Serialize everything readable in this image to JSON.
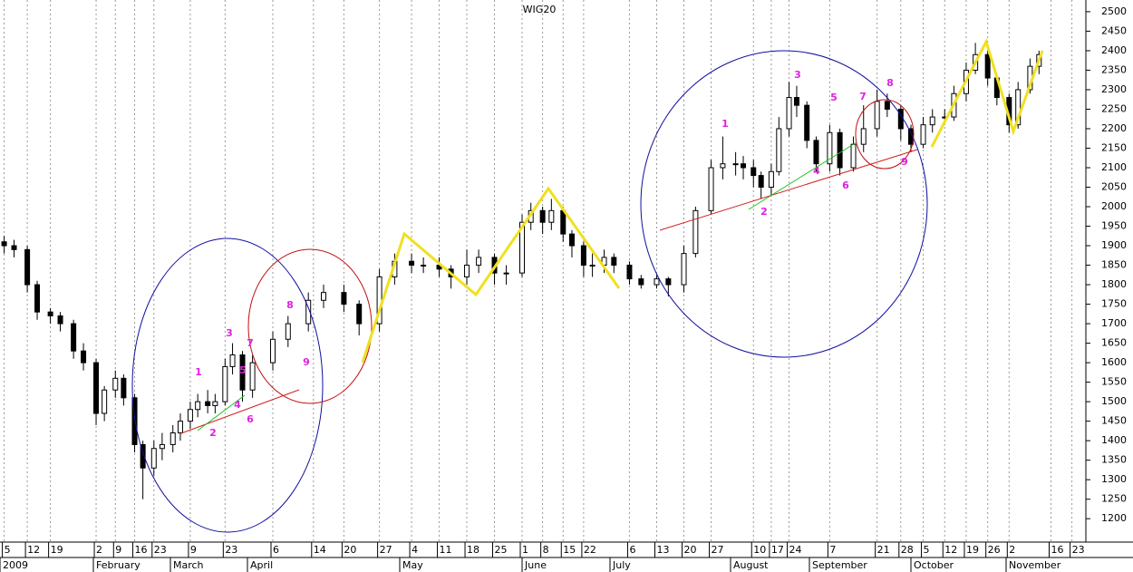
{
  "chart_data": {
    "type": "candlestick",
    "title": "WIG20",
    "x": [
      "2009-01-05",
      "2009-01-08",
      "2009-01-12",
      "2009-01-15",
      "2009-01-19",
      "2009-01-22",
      "2009-01-26",
      "2009-01-29",
      "2009-02-02",
      "2009-02-05",
      "2009-02-09",
      "2009-02-12",
      "2009-02-16",
      "2009-02-19",
      "2009-02-23",
      "2009-02-26",
      "2009-03-02",
      "2009-03-05",
      "2009-03-09",
      "2009-03-12",
      "2009-03-16",
      "2009-03-19",
      "2009-03-23",
      "2009-03-26",
      "2009-03-30",
      "2009-04-02",
      "2009-04-06",
      "2009-04-09",
      "2009-04-13",
      "2009-04-16",
      "2009-04-20",
      "2009-04-23",
      "2009-04-27",
      "2009-04-30",
      "2009-05-04",
      "2009-05-07",
      "2009-05-11",
      "2009-05-14",
      "2009-05-18",
      "2009-05-21",
      "2009-05-25",
      "2009-05-28",
      "2009-06-01",
      "2009-06-04",
      "2009-06-08",
      "2009-06-11",
      "2009-06-15",
      "2009-06-18",
      "2009-06-22",
      "2009-06-25",
      "2009-06-29",
      "2009-07-02",
      "2009-07-06",
      "2009-07-09",
      "2009-07-13",
      "2009-07-16",
      "2009-07-20",
      "2009-07-23",
      "2009-07-27",
      "2009-07-30",
      "2009-08-03",
      "2009-08-06",
      "2009-08-10",
      "2009-08-13",
      "2009-08-17",
      "2009-08-20",
      "2009-08-24",
      "2009-08-27",
      "2009-08-31",
      "2009-09-03",
      "2009-09-07",
      "2009-09-10",
      "2009-09-14",
      "2009-09-17",
      "2009-09-21",
      "2009-09-24",
      "2009-09-28",
      "2009-10-01",
      "2009-10-05",
      "2009-10-08",
      "2009-10-12",
      "2009-10-15",
      "2009-10-19",
      "2009-10-22",
      "2009-10-26",
      "2009-10-29",
      "2009-11-02",
      "2009-11-05",
      "2009-11-09",
      "2009-11-12"
    ],
    "open": [
      1910,
      1900,
      1890,
      1800,
      1730,
      1720,
      1700,
      1630,
      1600,
      1470,
      1530,
      1560,
      1510,
      1390,
      1330,
      1380,
      1390,
      1420,
      1450,
      1480,
      1500,
      1490,
      1500,
      1590,
      1620,
      1530,
      1600,
      1660,
      1700,
      1760,
      1780,
      1750,
      1700,
      1820,
      1860,
      1850,
      1850,
      1840,
      1820,
      1850,
      1870,
      1830,
      1830,
      1960,
      1990,
      1960,
      1990,
      1930,
      1900,
      1850,
      1850,
      1870,
      1850,
      1815,
      1800,
      1815,
      1800,
      1880,
      1990,
      2100,
      2110,
      2110,
      2100,
      2080,
      2050,
      2090,
      2200,
      2280,
      2260,
      2170,
      2110,
      2190,
      2100,
      2160,
      2200,
      2270,
      2250,
      2200,
      2160,
      2210,
      2230,
      2230,
      2290,
      2350,
      2390,
      2330,
      2280,
      2210,
      2300,
      2360
    ],
    "high": [
      1925,
      1915,
      1900,
      1810,
      1740,
      1730,
      1710,
      1650,
      1610,
      1540,
      1580,
      1570,
      1520,
      1400,
      1400,
      1420,
      1440,
      1470,
      1500,
      1520,
      1530,
      1520,
      1610,
      1650,
      1630,
      1620,
      1680,
      1720,
      1780,
      1800,
      1800,
      1760,
      1840,
      1880,
      1880,
      1870,
      1870,
      1850,
      1890,
      1890,
      1880,
      1850,
      1980,
      2010,
      2000,
      2020,
      2000,
      1940,
      1910,
      1880,
      1890,
      1880,
      1860,
      1825,
      1825,
      1820,
      1900,
      2000,
      2120,
      2180,
      2140,
      2130,
      2120,
      2090,
      2110,
      2230,
      2320,
      2310,
      2270,
      2180,
      2210,
      2200,
      2180,
      2260,
      2300,
      2290,
      2260,
      2210,
      2230,
      2250,
      2250,
      2310,
      2370,
      2420,
      2400,
      2340,
      2290,
      2320,
      2380,
      2400
    ],
    "low": [
      1880,
      1870,
      1780,
      1710,
      1700,
      1680,
      1610,
      1580,
      1440,
      1450,
      1510,
      1490,
      1370,
      1250,
      1310,
      1350,
      1370,
      1400,
      1430,
      1460,
      1470,
      1470,
      1490,
      1570,
      1500,
      1510,
      1580,
      1640,
      1680,
      1740,
      1730,
      1670,
      1680,
      1800,
      1830,
      1830,
      1820,
      1790,
      1800,
      1830,
      1800,
      1800,
      1820,
      1940,
      1930,
      1940,
      1910,
      1870,
      1820,
      1820,
      1830,
      1830,
      1800,
      1790,
      1790,
      1770,
      1780,
      1870,
      1980,
      2070,
      2080,
      2070,
      2050,
      2020,
      2030,
      2080,
      2180,
      2230,
      2150,
      2090,
      2090,
      2080,
      2090,
      2140,
      2180,
      2230,
      2170,
      2140,
      2150,
      2190,
      2210,
      2220,
      2270,
      2340,
      2310,
      2260,
      2190,
      2200,
      2290,
      2340
    ],
    "close": [
      1900,
      1890,
      1800,
      1730,
      1720,
      1700,
      1630,
      1600,
      1470,
      1530,
      1560,
      1510,
      1390,
      1330,
      1380,
      1390,
      1420,
      1450,
      1480,
      1500,
      1490,
      1500,
      1590,
      1620,
      1530,
      1600,
      1660,
      1700,
      1760,
      1780,
      1750,
      1700,
      1820,
      1860,
      1850,
      1850,
      1840,
      1820,
      1850,
      1870,
      1830,
      1830,
      1960,
      1990,
      1960,
      1990,
      1930,
      1900,
      1850,
      1850,
      1870,
      1850,
      1815,
      1800,
      1815,
      1800,
      1880,
      1990,
      2100,
      2110,
      2110,
      2100,
      2080,
      2050,
      2090,
      2200,
      2280,
      2260,
      2170,
      2110,
      2190,
      2100,
      2160,
      2200,
      2270,
      2250,
      2200,
      2160,
      2210,
      2230,
      2230,
      2290,
      2350,
      2390,
      2330,
      2280,
      2210,
      2300,
      2360,
      2390
    ],
    "ylim": [
      1140,
      2530
    ],
    "yticks": [
      1200,
      1250,
      1300,
      1350,
      1400,
      1450,
      1500,
      1550,
      1600,
      1650,
      1700,
      1750,
      1800,
      1850,
      1900,
      1950,
      2000,
      2050,
      2100,
      2150,
      2200,
      2250,
      2300,
      2350,
      2400,
      2450,
      2500
    ],
    "xticks": [
      {
        "value": "2009-01-05",
        "label": "5"
      },
      {
        "value": "2009-01-12",
        "label": "12"
      },
      {
        "value": "2009-01-19",
        "label": "19"
      },
      {
        "value": "2009-02-02",
        "label": "2"
      },
      {
        "value": "2009-02-09",
        "label": "9"
      },
      {
        "value": "2009-02-16",
        "label": "16"
      },
      {
        "value": "2009-02-23",
        "label": "23"
      },
      {
        "value": "2009-03-09",
        "label": "9"
      },
      {
        "value": "2009-03-23",
        "label": "23"
      },
      {
        "value": "2009-04-06",
        "label": "6"
      },
      {
        "value": "2009-04-14",
        "label": "14"
      },
      {
        "value": "2009-04-20",
        "label": "20"
      },
      {
        "value": "2009-04-27",
        "label": "27"
      },
      {
        "value": "2009-05-04",
        "label": "4"
      },
      {
        "value": "2009-05-11",
        "label": "11"
      },
      {
        "value": "2009-05-18",
        "label": "18"
      },
      {
        "value": "2009-05-25",
        "label": "25"
      },
      {
        "value": "2009-06-01",
        "label": "1"
      },
      {
        "value": "2009-06-08",
        "label": "8"
      },
      {
        "value": "2009-06-15",
        "label": "15"
      },
      {
        "value": "2009-06-22",
        "label": "22"
      },
      {
        "value": "2009-07-06",
        "label": "6"
      },
      {
        "value": "2009-07-13",
        "label": "13"
      },
      {
        "value": "2009-07-20",
        "label": "20"
      },
      {
        "value": "2009-07-27",
        "label": "27"
      },
      {
        "value": "2009-08-10",
        "label": "10"
      },
      {
        "value": "2009-08-17",
        "label": "17"
      },
      {
        "value": "2009-08-24",
        "label": "24"
      },
      {
        "value": "2009-09-07",
        "label": "7"
      },
      {
        "value": "2009-09-21",
        "label": "21"
      },
      {
        "value": "2009-09-28",
        "label": "28"
      },
      {
        "value": "2009-10-05",
        "label": "5"
      },
      {
        "value": "2009-10-12",
        "label": "12"
      },
      {
        "value": "2009-10-19",
        "label": "19"
      },
      {
        "value": "2009-10-26",
        "label": "26"
      },
      {
        "value": "2009-11-02",
        "label": "2"
      },
      {
        "value": "2009-11-16",
        "label": "16"
      },
      {
        "value": "2009-11-23",
        "label": "23"
      }
    ],
    "x_month_labels": [
      {
        "value": "2009-01",
        "label": "2009"
      },
      {
        "value": "2009-02",
        "label": "February"
      },
      {
        "value": "2009-03",
        "label": "March"
      },
      {
        "value": "2009-04",
        "label": "April"
      },
      {
        "value": "2009-05",
        "label": "May"
      },
      {
        "value": "2009-06",
        "label": "June"
      },
      {
        "value": "2009-07",
        "label": "July"
      },
      {
        "value": "2009-08",
        "label": "August"
      },
      {
        "value": "2009-09",
        "label": "September"
      },
      {
        "value": "2009-10",
        "label": "October"
      },
      {
        "value": "2009-11",
        "label": "November"
      }
    ],
    "grid": true,
    "up_color": "#ffffff",
    "down_color": "#000000",
    "annotations": [
      "1",
      "2",
      "3",
      "4",
      "5",
      "6",
      "7",
      "8",
      "9",
      "1",
      "2",
      "3",
      "4",
      "5",
      "6",
      "7",
      "8",
      "9"
    ]
  }
}
